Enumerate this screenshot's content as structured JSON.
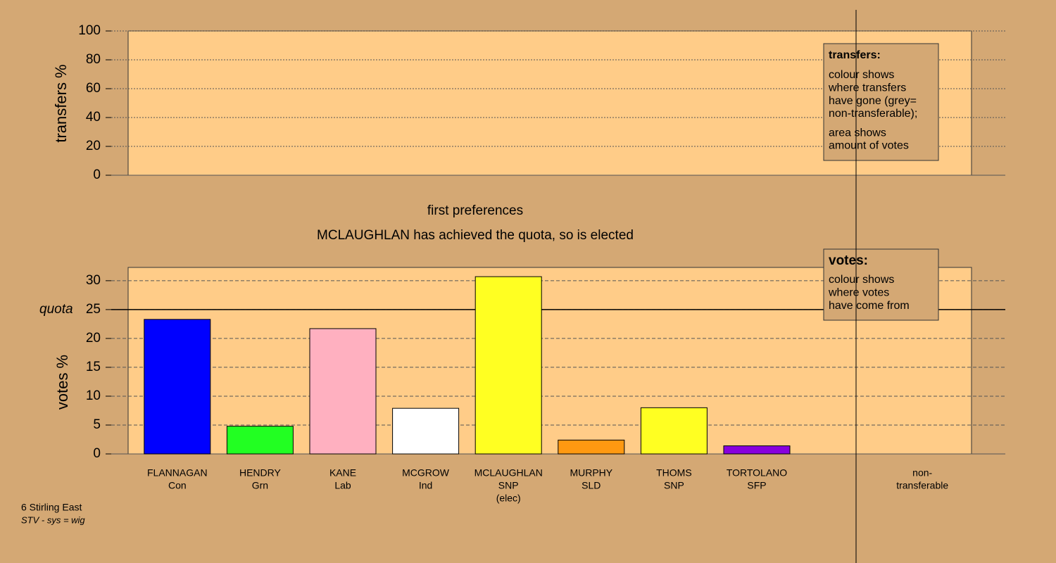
{
  "chart_data": [
    {
      "type": "bar",
      "ylabel": "transfers %",
      "ylim": [
        0,
        100
      ],
      "yticks": [
        0,
        20,
        40,
        60,
        80,
        100
      ],
      "grid": true,
      "legend": {
        "title": "transfers:",
        "lines": [
          "colour shows",
          "where transfers",
          "have gone (grey=",
          "non-transferable);",
          "area shows",
          "amount of votes"
        ]
      }
    },
    {
      "type": "bar",
      "ylabel": "votes %",
      "ylim": [
        0,
        32.3
      ],
      "yticks": [
        0,
        5,
        10,
        15,
        20,
        25,
        30
      ],
      "grid": true,
      "quota": {
        "value": 25,
        "label": "quota"
      },
      "categories": [
        [
          "FLANNAGAN",
          "Con"
        ],
        [
          "HENDRY",
          "Grn"
        ],
        [
          "KANE",
          "Lab"
        ],
        [
          "MCGROW",
          "Ind"
        ],
        [
          "MCLAUGHLAN",
          "SNP",
          "(elec)"
        ],
        [
          "MURPHY",
          "SLD"
        ],
        [
          "THOMS",
          "SNP"
        ],
        [
          "TORTOLANO",
          "SFP"
        ],
        null,
        [
          "non-",
          "transferable"
        ]
      ],
      "values": [
        23.3,
        4.8,
        21.7,
        7.9,
        30.7,
        2.4,
        8.0,
        1.4,
        null,
        0
      ],
      "colors": [
        "#0000ff",
        "#22ff22",
        "#ffb0c0",
        "#ffffff",
        "#ffff22",
        "#ff9911",
        "#ffff22",
        "#8800dd",
        null,
        "#999999"
      ],
      "legend": {
        "title": "votes:",
        "lines": [
          "colour shows",
          "where votes",
          "have come from"
        ]
      }
    }
  ],
  "captions": [
    "first preferences",
    "MCLAUGHLAN has achieved the quota, so is elected"
  ],
  "footer": {
    "area": "6 Stirling East",
    "system": "STV - sys = wig"
  }
}
